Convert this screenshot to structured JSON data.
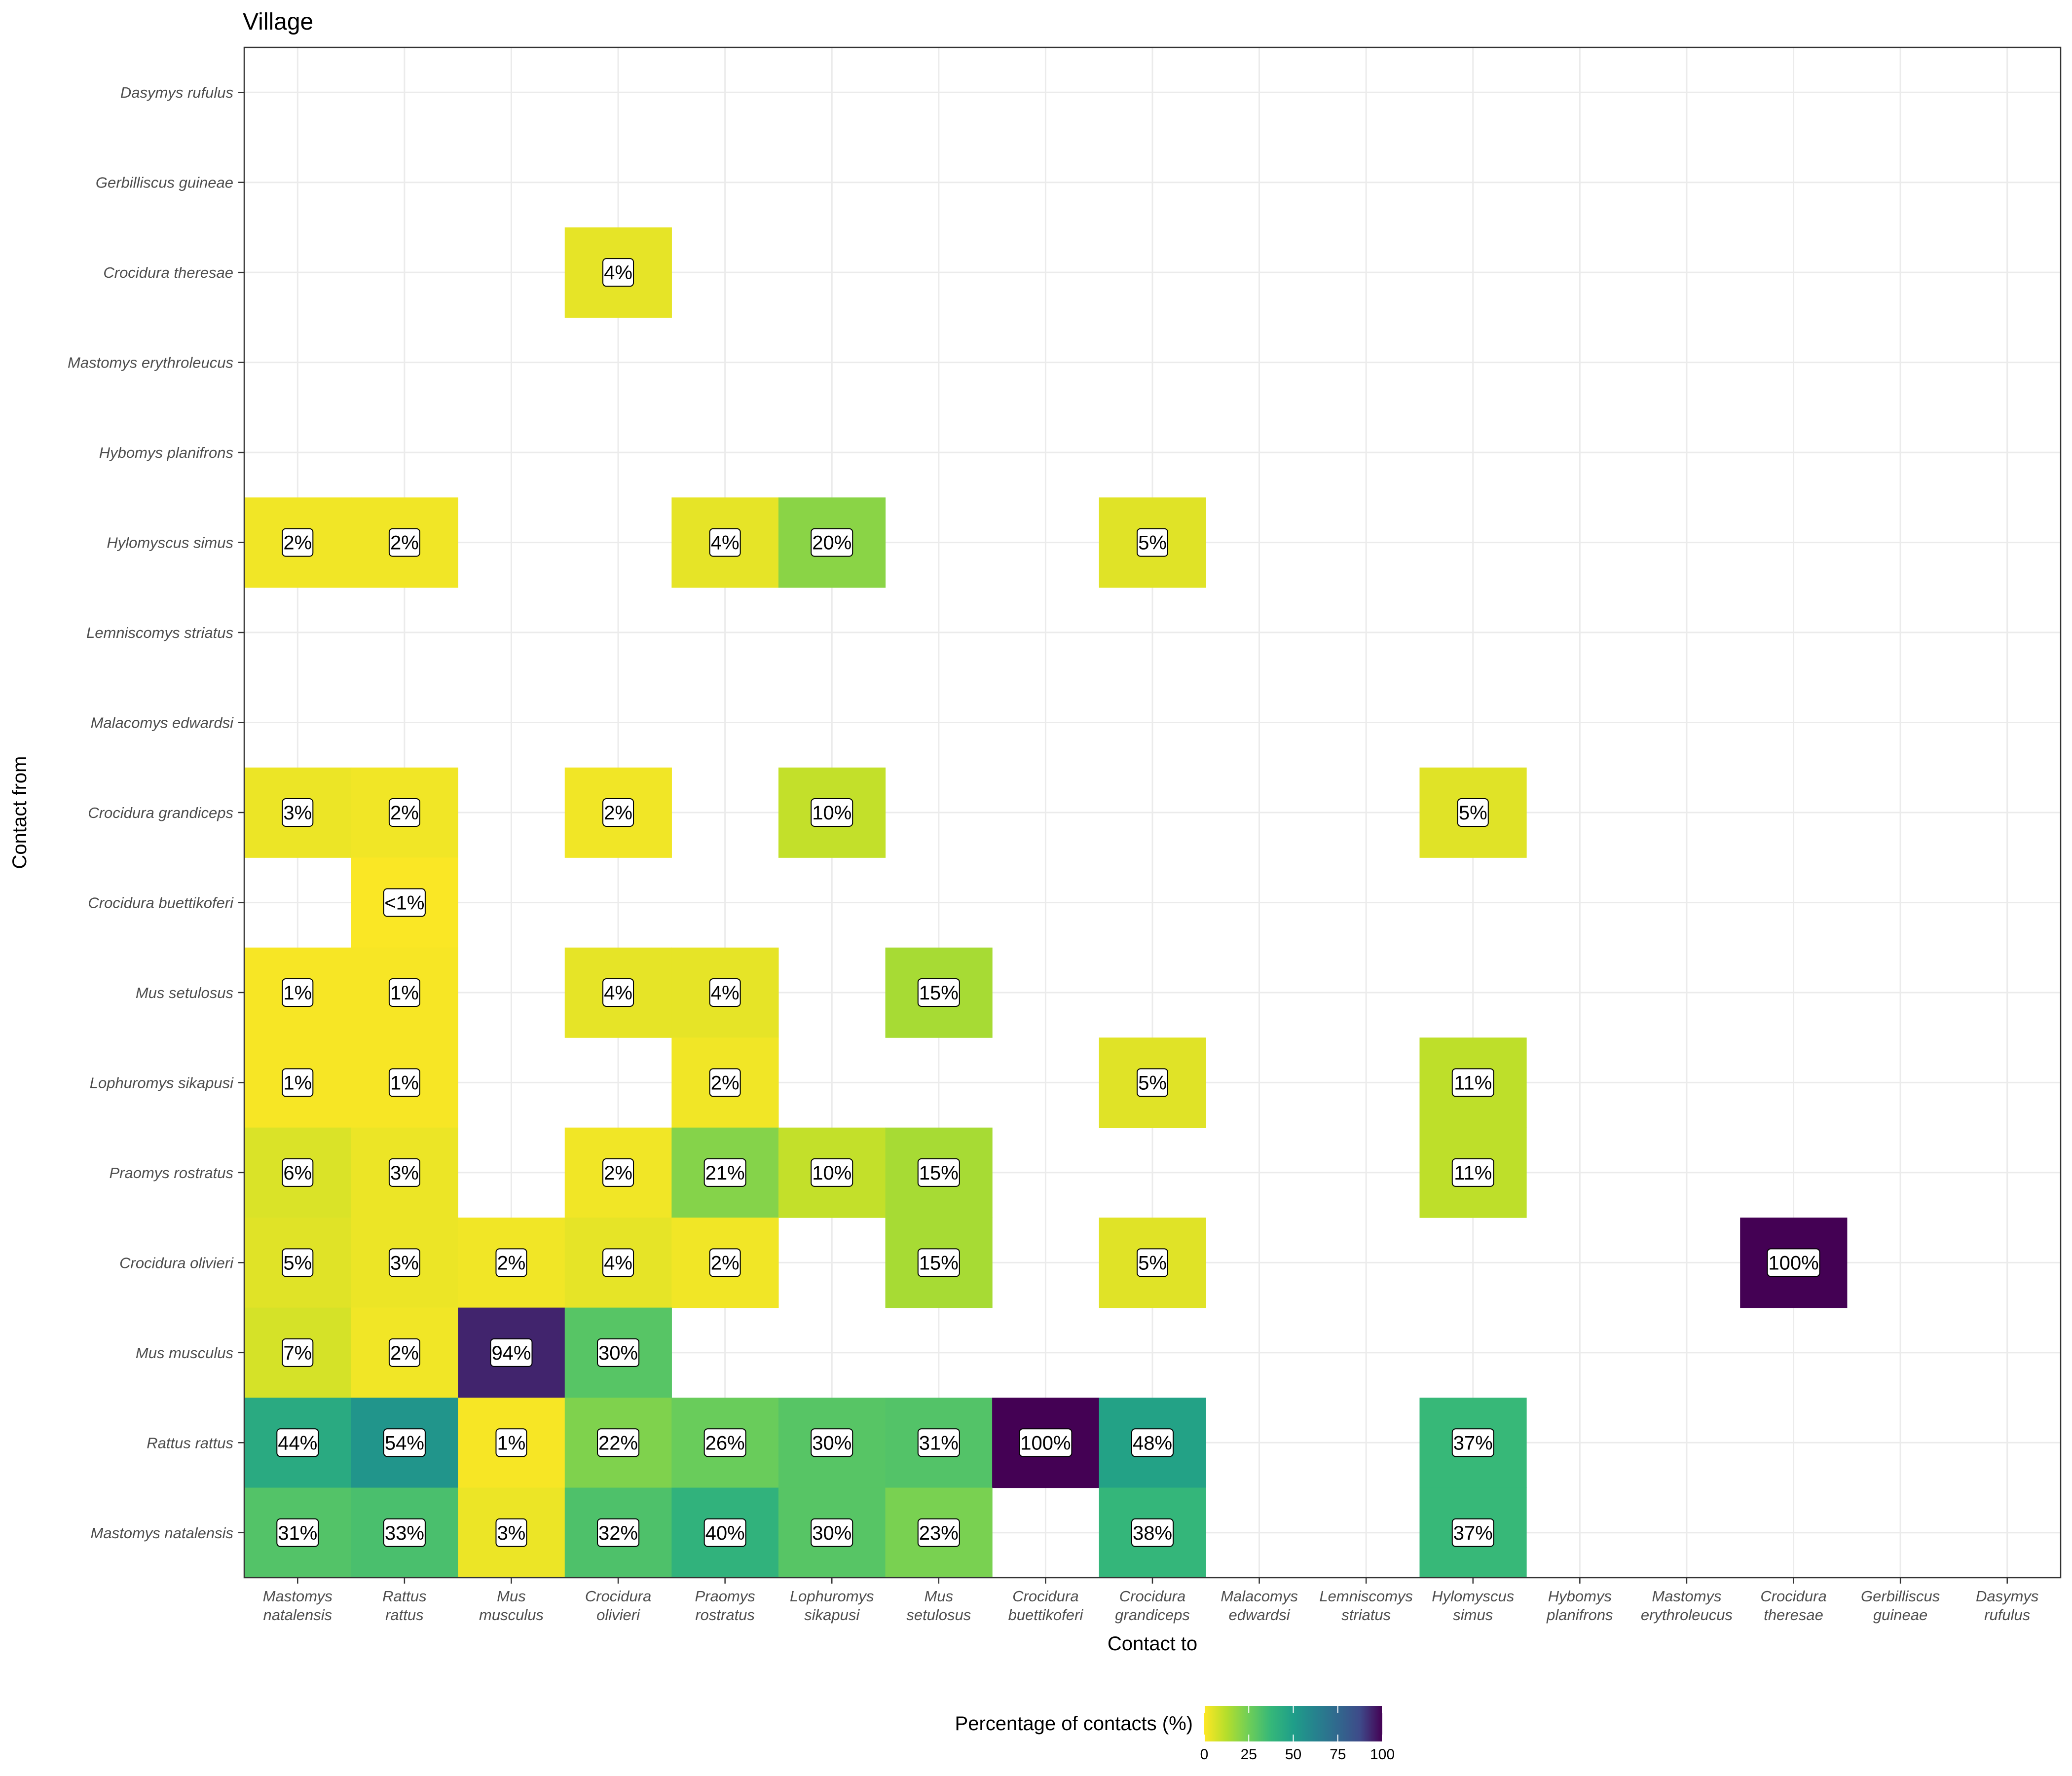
{
  "chart_data": {
    "type": "heatmap",
    "title": "Village",
    "xlabel": "Contact to",
    "ylabel": "Contact from",
    "grid": true,
    "x_categories": [
      [
        "Mastomys",
        "natalensis"
      ],
      [
        "Rattus",
        "rattus"
      ],
      [
        "Mus",
        "musculus"
      ],
      [
        "Crocidura",
        "olivieri"
      ],
      [
        "Praomys",
        "rostratus"
      ],
      [
        "Lophuromys",
        "sikapusi"
      ],
      [
        "Mus",
        "setulosus"
      ],
      [
        "Crocidura",
        "buettikoferi"
      ],
      [
        "Crocidura",
        "grandiceps"
      ],
      [
        "Malacomys",
        "edwardsi"
      ],
      [
        "Lemniscomys",
        "striatus"
      ],
      [
        "Hylomyscus",
        "simus"
      ],
      [
        "Hybomys",
        "planifrons"
      ],
      [
        "Mastomys",
        "erythroleucus"
      ],
      [
        "Crocidura",
        "theresae"
      ],
      [
        "Gerbilliscus",
        "guineae"
      ],
      [
        "Dasymys",
        "rufulus"
      ]
    ],
    "y_categories_top_to_bottom": [
      "Dasymys rufulus",
      "Gerbilliscus guineae",
      "Crocidura theresae",
      "Mastomys erythroleucus",
      "Hybomys planifrons",
      "Hylomyscus simus",
      "Lemniscomys striatus",
      "Malacomys edwardsi",
      "Crocidura grandiceps",
      "Crocidura buettikoferi",
      "Mus setulosus",
      "Lophuromys sikapusi",
      "Praomys rostratus",
      "Crocidura olivieri",
      "Mus musculus",
      "Rattus rattus",
      "Mastomys natalensis"
    ],
    "cells": [
      {
        "from": "Crocidura theresae",
        "to": 3,
        "value": 4,
        "label": "4%"
      },
      {
        "from": "Hylomyscus simus",
        "to": 0,
        "value": 2,
        "label": "2%"
      },
      {
        "from": "Hylomyscus simus",
        "to": 1,
        "value": 2,
        "label": "2%"
      },
      {
        "from": "Hylomyscus simus",
        "to": 4,
        "value": 4,
        "label": "4%"
      },
      {
        "from": "Hylomyscus simus",
        "to": 5,
        "value": 20,
        "label": "20%"
      },
      {
        "from": "Hylomyscus simus",
        "to": 8,
        "value": 5,
        "label": "5%"
      },
      {
        "from": "Crocidura grandiceps",
        "to": 0,
        "value": 3,
        "label": "3%"
      },
      {
        "from": "Crocidura grandiceps",
        "to": 1,
        "value": 2,
        "label": "2%"
      },
      {
        "from": "Crocidura grandiceps",
        "to": 3,
        "value": 2,
        "label": "2%"
      },
      {
        "from": "Crocidura grandiceps",
        "to": 5,
        "value": 10,
        "label": "10%"
      },
      {
        "from": "Crocidura grandiceps",
        "to": 11,
        "value": 5,
        "label": "5%"
      },
      {
        "from": "Crocidura buettikoferi",
        "to": 1,
        "value": 0.5,
        "label": "<1%"
      },
      {
        "from": "Mus setulosus",
        "to": 0,
        "value": 1,
        "label": "1%"
      },
      {
        "from": "Mus setulosus",
        "to": 1,
        "value": 1,
        "label": "1%"
      },
      {
        "from": "Mus setulosus",
        "to": 3,
        "value": 4,
        "label": "4%"
      },
      {
        "from": "Mus setulosus",
        "to": 4,
        "value": 4,
        "label": "4%"
      },
      {
        "from": "Mus setulosus",
        "to": 6,
        "value": 15,
        "label": "15%"
      },
      {
        "from": "Lophuromys sikapusi",
        "to": 0,
        "value": 1,
        "label": "1%"
      },
      {
        "from": "Lophuromys sikapusi",
        "to": 1,
        "value": 1,
        "label": "1%"
      },
      {
        "from": "Lophuromys sikapusi",
        "to": 4,
        "value": 2,
        "label": "2%"
      },
      {
        "from": "Lophuromys sikapusi",
        "to": 8,
        "value": 5,
        "label": "5%"
      },
      {
        "from": "Lophuromys sikapusi",
        "to": 11,
        "value": 11,
        "label": "11%"
      },
      {
        "from": "Praomys rostratus",
        "to": 0,
        "value": 6,
        "label": "6%"
      },
      {
        "from": "Praomys rostratus",
        "to": 1,
        "value": 3,
        "label": "3%"
      },
      {
        "from": "Praomys rostratus",
        "to": 3,
        "value": 2,
        "label": "2%"
      },
      {
        "from": "Praomys rostratus",
        "to": 4,
        "value": 21,
        "label": "21%"
      },
      {
        "from": "Praomys rostratus",
        "to": 5,
        "value": 10,
        "label": "10%"
      },
      {
        "from": "Praomys rostratus",
        "to": 6,
        "value": 15,
        "label": "15%"
      },
      {
        "from": "Praomys rostratus",
        "to": 11,
        "value": 11,
        "label": "11%"
      },
      {
        "from": "Crocidura olivieri",
        "to": 0,
        "value": 5,
        "label": "5%"
      },
      {
        "from": "Crocidura olivieri",
        "to": 1,
        "value": 3,
        "label": "3%"
      },
      {
        "from": "Crocidura olivieri",
        "to": 2,
        "value": 2,
        "label": "2%"
      },
      {
        "from": "Crocidura olivieri",
        "to": 3,
        "value": 4,
        "label": "4%"
      },
      {
        "from": "Crocidura olivieri",
        "to": 4,
        "value": 2,
        "label": "2%"
      },
      {
        "from": "Crocidura olivieri",
        "to": 6,
        "value": 15,
        "label": "15%"
      },
      {
        "from": "Crocidura olivieri",
        "to": 8,
        "value": 5,
        "label": "5%"
      },
      {
        "from": "Crocidura olivieri",
        "to": 14,
        "value": 100,
        "label": "100%"
      },
      {
        "from": "Mus musculus",
        "to": 0,
        "value": 7,
        "label": "7%"
      },
      {
        "from": "Mus musculus",
        "to": 1,
        "value": 2,
        "label": "2%"
      },
      {
        "from": "Mus musculus",
        "to": 2,
        "value": 94,
        "label": "94%"
      },
      {
        "from": "Mus musculus",
        "to": 3,
        "value": 30,
        "label": "30%"
      },
      {
        "from": "Rattus rattus",
        "to": 0,
        "value": 44,
        "label": "44%"
      },
      {
        "from": "Rattus rattus",
        "to": 1,
        "value": 54,
        "label": "54%"
      },
      {
        "from": "Rattus rattus",
        "to": 2,
        "value": 1,
        "label": "1%"
      },
      {
        "from": "Rattus rattus",
        "to": 3,
        "value": 22,
        "label": "22%"
      },
      {
        "from": "Rattus rattus",
        "to": 4,
        "value": 26,
        "label": "26%"
      },
      {
        "from": "Rattus rattus",
        "to": 5,
        "value": 30,
        "label": "30%"
      },
      {
        "from": "Rattus rattus",
        "to": 6,
        "value": 31,
        "label": "31%"
      },
      {
        "from": "Rattus rattus",
        "to": 7,
        "value": 100,
        "label": "100%"
      },
      {
        "from": "Rattus rattus",
        "to": 8,
        "value": 48,
        "label": "48%"
      },
      {
        "from": "Rattus rattus",
        "to": 11,
        "value": 37,
        "label": "37%"
      },
      {
        "from": "Mastomys natalensis",
        "to": 0,
        "value": 31,
        "label": "31%"
      },
      {
        "from": "Mastomys natalensis",
        "to": 1,
        "value": 33,
        "label": "33%"
      },
      {
        "from": "Mastomys natalensis",
        "to": 2,
        "value": 3,
        "label": "3%"
      },
      {
        "from": "Mastomys natalensis",
        "to": 3,
        "value": 32,
        "label": "32%"
      },
      {
        "from": "Mastomys natalensis",
        "to": 4,
        "value": 40,
        "label": "40%"
      },
      {
        "from": "Mastomys natalensis",
        "to": 5,
        "value": 30,
        "label": "30%"
      },
      {
        "from": "Mastomys natalensis",
        "to": 6,
        "value": 23,
        "label": "23%"
      },
      {
        "from": "Mastomys natalensis",
        "to": 8,
        "value": 38,
        "label": "38%"
      },
      {
        "from": "Mastomys natalensis",
        "to": 11,
        "value": 37,
        "label": "37%"
      }
    ],
    "legend": {
      "title": "Percentage of contacts (%)",
      "position": "bottom",
      "range": [
        0,
        100
      ],
      "ticks": [
        0,
        25,
        50,
        75,
        100
      ],
      "colors": [
        "#fde725",
        "#5ec962",
        "#21918c",
        "#3b528b",
        "#440154"
      ]
    }
  }
}
